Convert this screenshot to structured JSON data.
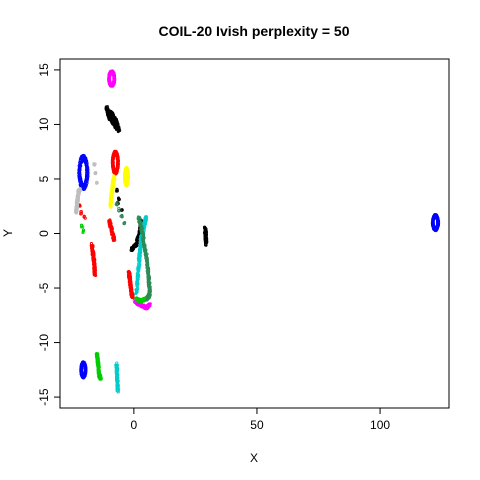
{
  "chart_data": {
    "type": "scatter",
    "title": "COIL-20 Ivish perplexity = 50",
    "xlabel": "X",
    "ylabel": "Y",
    "xlim": [
      -30,
      128
    ],
    "ylim": [
      -16,
      16
    ],
    "xticks": [
      0,
      50,
      100
    ],
    "yticks": [
      -15,
      -10,
      -5,
      0,
      5,
      10,
      15
    ],
    "grid": false,
    "legend": "none",
    "series": [
      {
        "color": "#0000FF",
        "clusters": [
          {
            "shape": "ring",
            "cx": -20.5,
            "cy": 5.6,
            "rx": 1.8,
            "ry": 1.5,
            "rot": 0
          },
          {
            "shape": "ring",
            "cx": -20.5,
            "cy": -12.5,
            "rx": 1.0,
            "ry": 0.7,
            "rot": 0
          },
          {
            "shape": "ring",
            "cx": 122.5,
            "cy": 1.0,
            "rx": 1.2,
            "ry": 0.7,
            "rot": 0
          }
        ]
      },
      {
        "color": "#FF00FF",
        "clusters": [
          {
            "shape": "ring",
            "cx": -9,
            "cy": 14.2,
            "rx": 1.2,
            "ry": 0.7,
            "rot": 0
          },
          {
            "shape": "line",
            "x": [
              0.5,
              3,
              5,
              6.5
            ],
            "y": [
              -6.2,
              -6.6,
              -6.8,
              -6.5
            ]
          }
        ]
      },
      {
        "color": "#000000",
        "clusters": [
          {
            "shape": "line",
            "x": [
              -11,
              -9,
              -7,
              -6
            ],
            "y": [
              11.3,
              11.0,
              10.2,
              9.4
            ]
          },
          {
            "shape": "line",
            "x": [
              -11,
              -10,
              -8,
              -7
            ],
            "y": [
              11.6,
              10.6,
              10.1,
              9.6
            ]
          },
          {
            "shape": "line",
            "x": [
              -1,
              1,
              2.5,
              3
            ],
            "y": [
              -1.5,
              -1.0,
              0.2,
              1.2
            ]
          },
          {
            "shape": "line",
            "x": [
              29,
              29.2,
              29.4
            ],
            "y": [
              0.5,
              -0.2,
              -1.0
            ]
          },
          {
            "shape": "scatter",
            "x": [
              -7,
              -6,
              -5,
              -6.5
            ],
            "y": [
              4.0,
              3.2,
              2.2,
              2.8
            ]
          }
        ]
      },
      {
        "color": "#FF0000",
        "clusters": [
          {
            "shape": "ring",
            "cx": -7.5,
            "cy": 6.5,
            "rx": 1.2,
            "ry": 1.0,
            "rot": 0
          },
          {
            "shape": "line",
            "x": [
              -10,
              -9,
              -8
            ],
            "y": [
              1.2,
              0.3,
              -0.6
            ]
          },
          {
            "shape": "line",
            "x": [
              -17,
              -16.5,
              -16,
              -15.8
            ],
            "y": [
              -1.0,
              -2.0,
              -3.0,
              -3.8
            ]
          },
          {
            "shape": "line",
            "x": [
              -2,
              -1.5,
              -1,
              -0.5
            ],
            "y": [
              -3.5,
              -4.5,
              -5.5,
              -5.8
            ]
          },
          {
            "shape": "scatter",
            "x": [
              -22,
              -21.5,
              -20
            ],
            "y": [
              2.5,
              1.9,
              1.5
            ]
          }
        ]
      },
      {
        "color": "#FFFF00",
        "clusters": [
          {
            "shape": "line",
            "x": [
              -9.5,
              -9,
              -8.5,
              -8
            ],
            "y": [
              2.5,
              3.5,
              4.5,
              5.2
            ]
          },
          {
            "shape": "ring",
            "cx": -3,
            "cy": 5.2,
            "rx": 0.8,
            "ry": 0.8,
            "rot": 0
          }
        ]
      },
      {
        "color": "#00CCCC",
        "clusters": [
          {
            "shape": "line",
            "x": [
              -7,
              -6.8,
              -6.5
            ],
            "y": [
              -12.0,
              -13.0,
              -14.5
            ]
          },
          {
            "shape": "line",
            "x": [
              1,
              2,
              3
            ],
            "y": [
              -5.5,
              -3,
              0
            ]
          },
          {
            "shape": "line",
            "x": [
              2,
              3,
              4,
              5
            ],
            "y": [
              -2.5,
              -1,
              0.5,
              1.5
            ]
          }
        ]
      },
      {
        "color": "#00CC00",
        "clusters": [
          {
            "shape": "line",
            "x": [
              -15,
              -14.5,
              -14,
              -13.5
            ],
            "y": [
              -11.0,
              -12.0,
              -13.0,
              -13.3
            ]
          },
          {
            "shape": "line",
            "x": [
              1,
              3,
              5,
              6.5
            ],
            "y": [
              -6.0,
              -6.2,
              -6.0,
              -5.6
            ]
          },
          {
            "shape": "scatter",
            "x": [
              -21,
              -20.5
            ],
            "y": [
              0.7,
              0.2
            ]
          }
        ]
      },
      {
        "color": "#2E8B57",
        "clusters": [
          {
            "shape": "scatter",
            "x": [
              -4,
              -5,
              -6,
              -7
            ],
            "y": [
              1.0,
              1.6,
              2.2,
              2.7
            ]
          },
          {
            "shape": "line",
            "x": [
              2,
              3.5,
              5,
              6,
              6.5,
              5.5
            ],
            "y": [
              1.5,
              0,
              -2,
              -4,
              -5.5,
              -6.0
            ]
          }
        ]
      },
      {
        "color": "#BEBEBE",
        "clusters": [
          {
            "shape": "line",
            "x": [
              -23.5,
              -23,
              -22.5,
              -22
            ],
            "y": [
              1.9,
              2.8,
              3.8,
              4.0
            ]
          },
          {
            "shape": "scatter",
            "x": [
              -16,
              -15.5,
              -15
            ],
            "y": [
              6.3,
              5.6,
              4.7
            ]
          }
        ]
      }
    ]
  }
}
